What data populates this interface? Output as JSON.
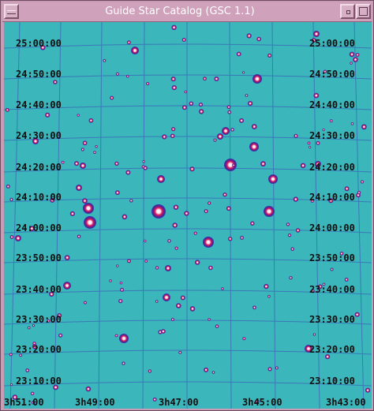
{
  "window": {
    "title": "Guide Star Catalog (GSC 1.1)"
  },
  "map": {
    "background_color": "#3bb6bb",
    "grid_color": "#3a78b8",
    "dec_labels": [
      "25:00:00",
      "24:50:00",
      "24:40:00",
      "24:30:00",
      "24:20:00",
      "24:10:00",
      "24:00:00",
      "23:50:00",
      "23:40:00",
      "23:30:00",
      "23:20:00",
      "23:10:00"
    ],
    "ra_labels": [
      "3h51:00",
      "3h49:00",
      "3h47:00",
      "3h45:00",
      "3h43:00"
    ]
  }
}
